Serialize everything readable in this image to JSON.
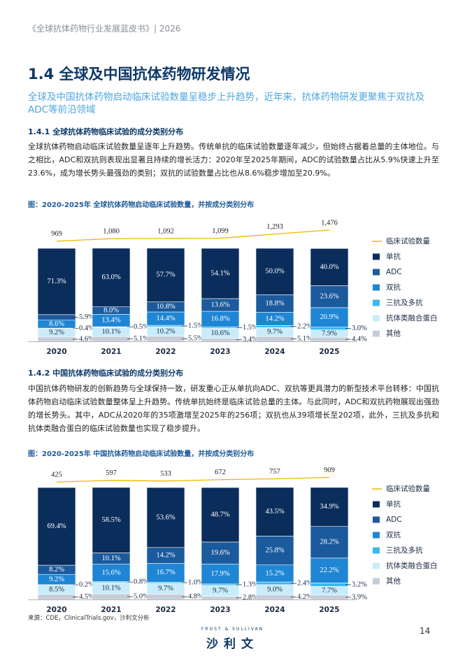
{
  "header": "《全球抗体药物行业发展蓝皮书》| 2026",
  "section_title": "1.4 全球及中国抗体药物研发情况",
  "lead": "全球及中国抗体药物启动临床试验数量呈稳步上升趋势，近年来，抗体药物研发更聚焦于双抗及ADC等前沿领域",
  "sections": [
    {
      "title": "1.4.1 全球抗体药物临床试验的成分类别分布",
      "text": "全球抗体药物启动临床试验数量呈逐年上升趋势。传统单抗的临床试验数量逐年减少，但始终占据着总量的主体地位。与之相比，ADC和双抗则表现出显著且持续的增长活力：2020年至2025年期间，ADC的试验数量占比从5.9%快速上升至23.6%，成为增长势头最强劲的类别；双抗的试验数量占比也从8.6%稳步增加至20.9%。"
    },
    {
      "title": "1.4.2 中国抗体药物临床试验的成分类别分布",
      "text": "中国抗体药物研发的创新趋势与全球保持一致，研发重心正从单抗向ADC、双抗等更具潜力的新型技术平台转移：中国抗体药物启动临床试验数量整体呈上升趋势。传统单抗始终是临床试验总量的主体。与此同时，ADC和双抗药物展现出强劲的增长势头。其中，ADC从2020年的35项激增至2025年的256项；双抗也从39项增长至202项，此外，三抗及多抗和抗体类融合蛋白的临床试验数量也实现了稳步提升。"
    }
  ],
  "chart_data": [
    {
      "type": "stacked_bar_line",
      "title": "图：2020-2025年 全球抗体药物启动临床试验数量，并按成分类别分布",
      "categories": [
        "2020",
        "2021",
        "2022",
        "2023",
        "2024",
        "2025"
      ],
      "ylim": [
        0,
        100
      ],
      "series": [
        {
          "name": "单抗",
          "color": "#0b2d5b",
          "values": [
            71.3,
            63.0,
            57.7,
            54.1,
            50.0,
            40.0
          ],
          "value_labels": [
            "71.3%",
            "63.0%",
            "57.7%",
            "54.1%",
            "50.0%",
            "40.0%"
          ]
        },
        {
          "name": "ADC",
          "color": "#1b5a9c",
          "values": [
            5.9,
            8.0,
            10.8,
            13.6,
            18.8,
            23.6
          ],
          "value_labels": [
            "5.9%",
            "8.0%",
            "10.8%",
            "13.6%",
            "18.8%",
            "23.6%"
          ]
        },
        {
          "name": "双抗",
          "color": "#1e86d4",
          "values": [
            8.6,
            13.4,
            14.4,
            16.8,
            14.2,
            20.9
          ],
          "value_labels": [
            "8.6%",
            "13.4%",
            "14.4%",
            "16.8%",
            "14.2%",
            "20.9%"
          ]
        },
        {
          "name": "三抗及多抗",
          "color": "#3bb8f0",
          "values": [
            0.4,
            0.5,
            1.5,
            1.5,
            2.2,
            3.0
          ],
          "value_labels": [
            "0.4%",
            "0.5%",
            "1.5%",
            "1.5%",
            "2.2%",
            "3.0%"
          ]
        },
        {
          "name": "抗体类融合蛋白",
          "color": "#c9ecfa",
          "values": [
            9.2,
            10.1,
            10.2,
            10.6,
            9.7,
            7.9
          ],
          "value_labels": [
            "9.2%",
            "10.1%",
            "10.2%",
            "10.6%",
            "9.7%",
            "7.9%"
          ]
        },
        {
          "name": "其他",
          "color": "#c6ccd8",
          "values": [
            4.6,
            5.1,
            5.5,
            3.4,
            5.1,
            4.4
          ],
          "value_labels": [
            "4.6%",
            "5.1%",
            "5.5%",
            "3.4%",
            "5.1%",
            "4.4%"
          ]
        }
      ],
      "line": {
        "name": "临床试验数量",
        "color": "#f1b500",
        "values": [
          969,
          1080,
          1092,
          1099,
          1293,
          1476
        ],
        "value_labels": [
          "969",
          "1,080",
          "1,092",
          "1,099",
          "1,293",
          "1,476"
        ]
      },
      "y2lim": [
        0,
        1600
      ]
    },
    {
      "type": "stacked_bar_line",
      "title": "图：2020-2025年 中国抗体药物启动临床试验数量，并按成分类别分布",
      "categories": [
        "2020",
        "2021",
        "2022",
        "2023",
        "2024",
        "2025"
      ],
      "ylim": [
        0,
        100
      ],
      "series": [
        {
          "name": "单抗",
          "color": "#0b2d5b",
          "values": [
            69.4,
            58.5,
            53.6,
            48.7,
            43.5,
            34.9
          ],
          "value_labels": [
            "69.4%",
            "58.5%",
            "53.6%",
            "48.7%",
            "43.5%",
            "34.9%"
          ]
        },
        {
          "name": "ADC",
          "color": "#1b5a9c",
          "values": [
            8.2,
            10.1,
            14.2,
            19.6,
            25.8,
            28.2
          ],
          "value_labels": [
            "8.2%",
            "10.1%",
            "14.2%",
            "19.6%",
            "25.8%",
            "28.2%"
          ]
        },
        {
          "name": "双抗",
          "color": "#1e86d4",
          "values": [
            9.2,
            15.6,
            16.7,
            17.9,
            15.2,
            22.2
          ],
          "value_labels": [
            "9.2%",
            "15.6%",
            "16.7%",
            "17.9%",
            "15.2%",
            "22.2%"
          ]
        },
        {
          "name": "三抗及多抗",
          "color": "#3bb8f0",
          "values": [
            0.2,
            0.8,
            1.0,
            1.3,
            2.4,
            3.2
          ],
          "value_labels": [
            "0.2%",
            "0.8%",
            "1.0%",
            "1.3%",
            "2.4%",
            "3.2%"
          ]
        },
        {
          "name": "抗体类融合蛋白",
          "color": "#c9ecfa",
          "values": [
            8.5,
            10.1,
            9.7,
            9.7,
            9.0,
            7.7
          ],
          "value_labels": [
            "8.5%",
            "10.1%",
            "9.7%",
            "9.7%",
            "9.0%",
            "7.7%"
          ]
        },
        {
          "name": "其他",
          "color": "#c6ccd8",
          "values": [
            4.5,
            5.0,
            4.8,
            2.8,
            4.2,
            3.9
          ],
          "value_labels": [
            "4.5%",
            "5.0%",
            "4.8%",
            "2.8%",
            "4.2%",
            "3.9%"
          ]
        }
      ],
      "line": {
        "name": "临床试验数量",
        "color": "#f1b500",
        "values": [
          425,
          597,
          533,
          672,
          757,
          909
        ],
        "value_labels": [
          "425",
          "597",
          "533",
          "672",
          "757",
          "909"
        ]
      },
      "y2lim": [
        0,
        4000
      ]
    }
  ],
  "source": "来源：CDE，ClinicalTrials.gov，沙利文分析",
  "page_number": "14",
  "footer": {
    "brand_en": "FROST & SULLIVAN",
    "brand_cn": "沙利文"
  }
}
